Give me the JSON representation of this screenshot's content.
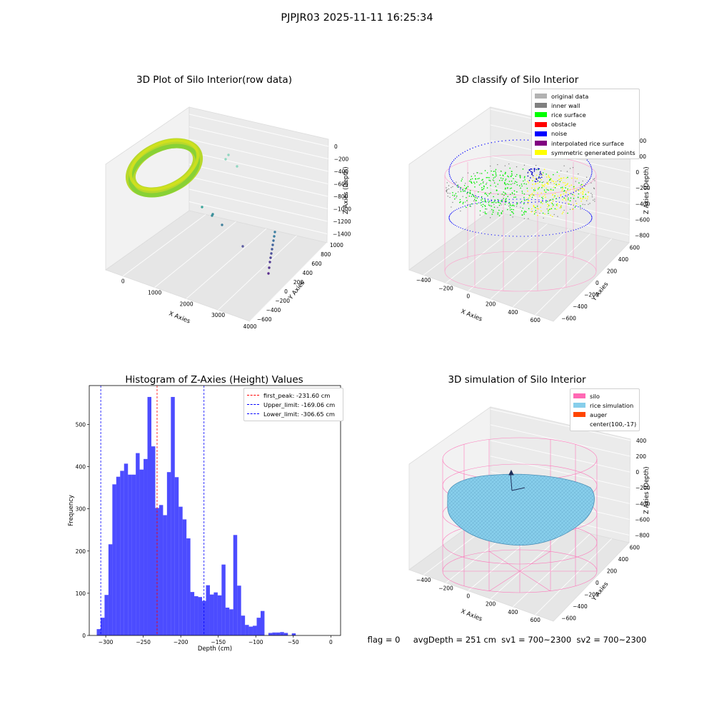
{
  "suptitle": "PJPJR03 2025-11-11 16:25:34",
  "footer": "flag = 0     avgDepth = 251 cm  sv1 = 700~2300  sv2 = 700~2300",
  "panels": {
    "raw3d": {
      "title": "3D Plot of Silo Interior(row data)",
      "xlabel": "X Axies",
      "ylabel": "Y Axies",
      "zlabel": "Z Axies (Depth)",
      "xticks": [
        "0",
        "1000",
        "2000",
        "3000",
        "4000"
      ],
      "yticks": [
        "1000",
        "800",
        "600",
        "400",
        "200",
        "0",
        "−200",
        "−400",
        "−600"
      ],
      "zticks": [
        "0",
        "−200",
        "−400",
        "−600",
        "−800",
        "−1000",
        "−1200",
        "−1400"
      ]
    },
    "classify3d": {
      "title": "3D classify of Silo Interior",
      "xlabel": "X Axies",
      "ylabel": "Y Axies",
      "zlabel": "Z Axies (Depth)",
      "xticks": [
        "−400",
        "−200",
        "0",
        "200",
        "400",
        "600"
      ],
      "yticks": [
        "600",
        "400",
        "200",
        "0",
        "−200",
        "−400",
        "−600"
      ],
      "zticks": [
        "400",
        "200",
        "0",
        "−200",
        "−400",
        "−600",
        "−800"
      ],
      "legend": [
        {
          "label": "original data",
          "color": "#b2b2b2"
        },
        {
          "label": "inner wall",
          "color": "#808080"
        },
        {
          "label": "rice surface",
          "color": "#00ff00"
        },
        {
          "label": "obstacle",
          "color": "#ff0000"
        },
        {
          "label": "noise",
          "color": "#0000ff"
        },
        {
          "label": "interpolated rice surface",
          "color": "#800080"
        },
        {
          "label": "symmetric generated points",
          "color": "#ffff00"
        }
      ]
    },
    "simulation3d": {
      "title": "3D simulation of Silo Interior",
      "xlabel": "X Axies",
      "ylabel": "Y Axies",
      "zlabel": "Z Axies (Depth)",
      "xticks": [
        "−400",
        "−200",
        "0",
        "200",
        "400",
        "600"
      ],
      "yticks": [
        "600",
        "400",
        "200",
        "0",
        "−200",
        "−400",
        "−600"
      ],
      "zticks": [
        "400",
        "200",
        "0",
        "−200",
        "−400",
        "−600",
        "−800"
      ],
      "legend": [
        {
          "label": "silo",
          "color": "#ff69b4"
        },
        {
          "label": "rice simulation",
          "color": "#87ceeb"
        },
        {
          "label": "auger",
          "color": "#ff4500"
        },
        {
          "label": "center(100,-17)",
          "color": ""
        }
      ]
    }
  },
  "chart_data": [
    {
      "type": "bar",
      "title": "Histogram of Z-Axies (Height) Values",
      "xlabel": "Depth (cm)",
      "ylabel": "Frequency",
      "xlim": [
        -322,
        13
      ],
      "ylim": [
        0,
        592
      ],
      "xticks": [
        -300,
        -250,
        -200,
        -150,
        -100,
        -50,
        0
      ],
      "yticks": [
        0,
        100,
        200,
        300,
        400,
        500
      ],
      "bar_color": "#0000ff",
      "bin_start": -312,
      "bin_width": 5.2,
      "values": [
        15,
        42,
        96,
        216,
        358,
        376,
        390,
        407,
        381,
        381,
        432,
        393,
        418,
        565,
        448,
        302,
        309,
        285,
        387,
        565,
        375,
        305,
        275,
        230,
        103,
        93,
        91,
        82,
        119,
        97,
        102,
        95,
        168,
        66,
        62,
        238,
        118,
        47,
        25,
        21,
        23,
        42,
        58,
        0,
        6,
        7,
        7,
        8,
        6,
        0,
        5
      ],
      "vlines": [
        {
          "label": "first_peak: -231.60 cm",
          "x": -231.6,
          "color": "#ff0000"
        },
        {
          "label": "Upper_limit: -169.06 cm",
          "x": -169.06,
          "color": "#0000ff"
        },
        {
          "label": "Lower_limit: -306.65 cm",
          "x": -306.65,
          "color": "#0000ff"
        }
      ],
      "legend_position": "upper right"
    }
  ]
}
